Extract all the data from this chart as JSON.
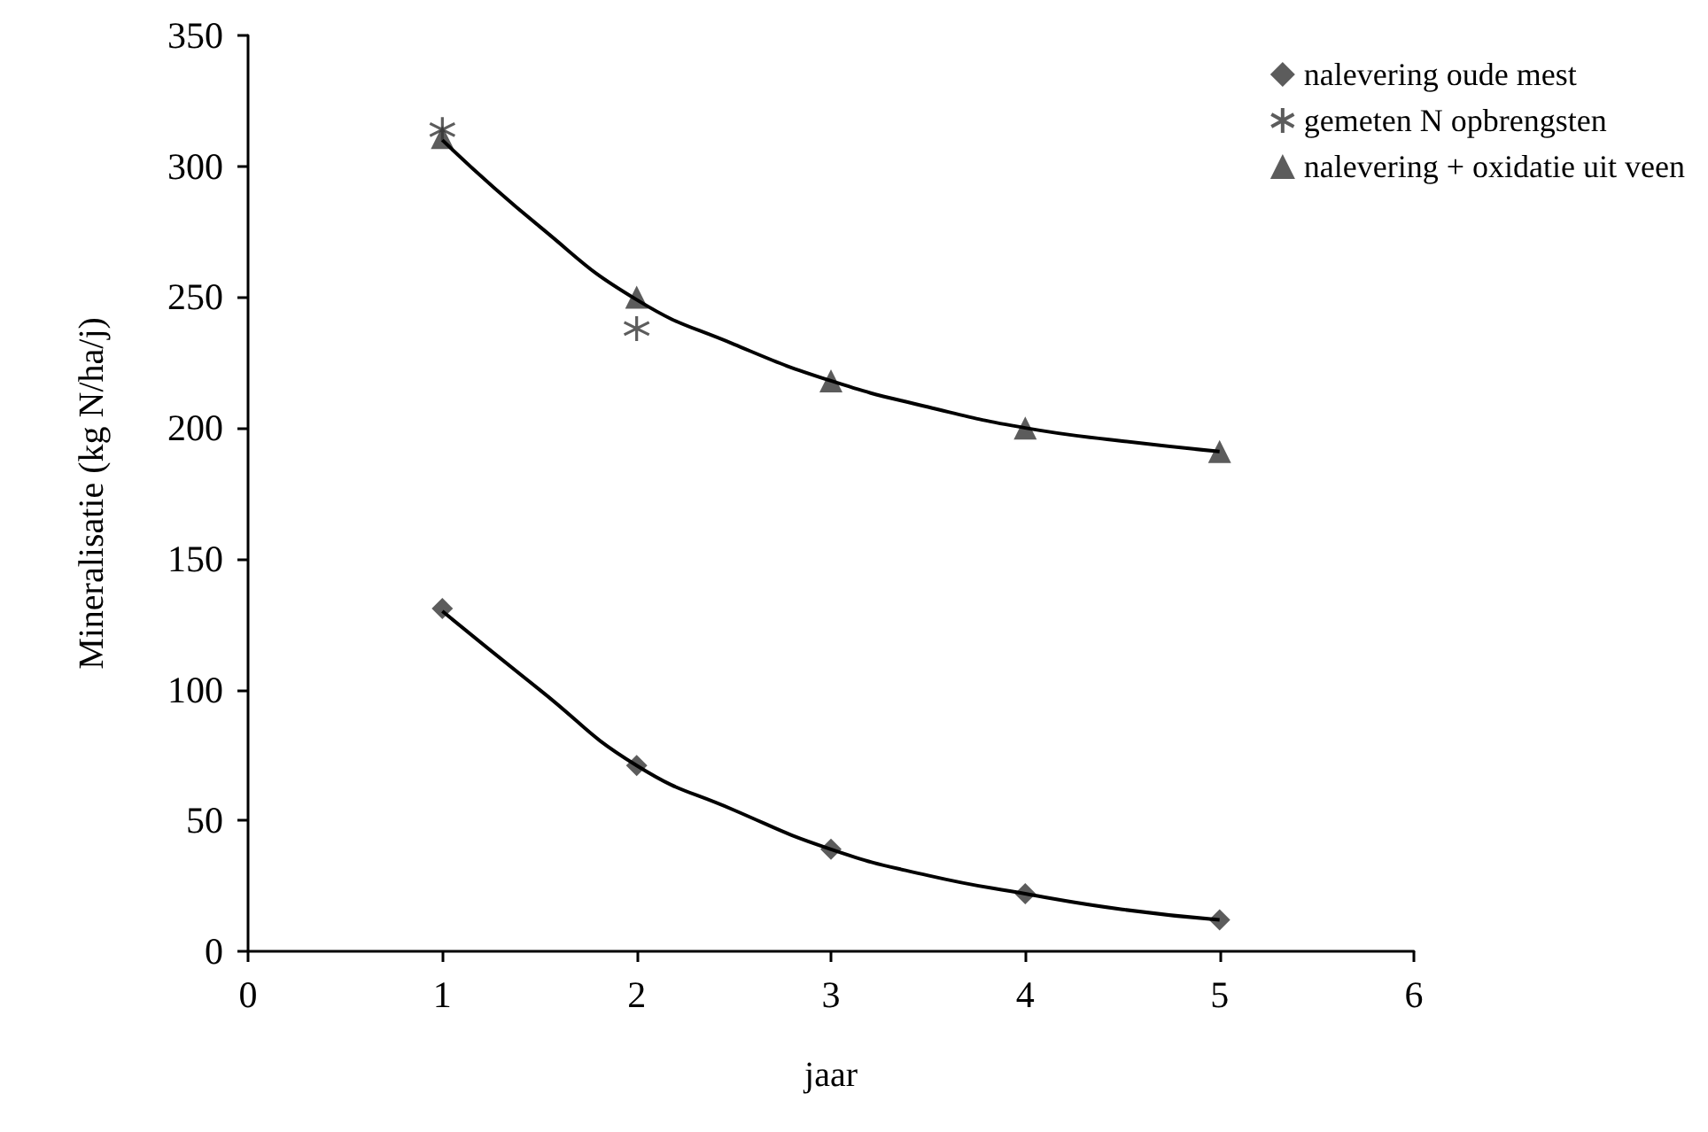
{
  "chart_data": {
    "type": "scatter",
    "xlabel": "jaar",
    "ylabel": "Mineralisatie (kg N/ha/j)",
    "xlim": [
      0,
      6
    ],
    "xticks": [
      0,
      1,
      2,
      3,
      4,
      5,
      6
    ],
    "ylim": [
      0,
      350
    ],
    "yticks": [
      0,
      50,
      100,
      150,
      200,
      250,
      300,
      350
    ],
    "grid": false,
    "legend": "top right",
    "series": [
      {
        "name": "nalevering oude mest",
        "color": "#333333",
        "marker": "diamond",
        "x": [
          1,
          2,
          3,
          4,
          5
        ],
        "values": [
          131,
          71,
          39,
          22,
          12
        ]
      },
      {
        "name": "gemeten N opbrengsten",
        "color": "#333333",
        "marker": "cross",
        "x": [
          1,
          2
        ],
        "values": [
          314,
          238
        ]
      },
      {
        "name": "nalevering + oxidatie uit veen",
        "color": "#333333",
        "marker": "triangle",
        "x": [
          1,
          2,
          3,
          4,
          5
        ],
        "values": [
          311,
          250,
          218,
          200,
          191
        ]
      },
      {
        "type": "line",
        "color": "#000000",
        "marker": "none",
        "x": [
          1,
          1.5,
          2,
          2.5,
          3,
          3.5,
          4,
          4.5,
          5
        ],
        "values": [
          130,
          100,
          71,
          54,
          39,
          29,
          22,
          16,
          12
        ]
      },
      {
        "type": "line",
        "color": "#000000",
        "marker": "none",
        "x": [
          1,
          1.5,
          2,
          2.5,
          3,
          3.5,
          4,
          4.5,
          5
        ],
        "values": [
          310,
          277,
          249,
          232,
          218,
          208,
          200,
          195,
          191
        ]
      }
    ]
  }
}
